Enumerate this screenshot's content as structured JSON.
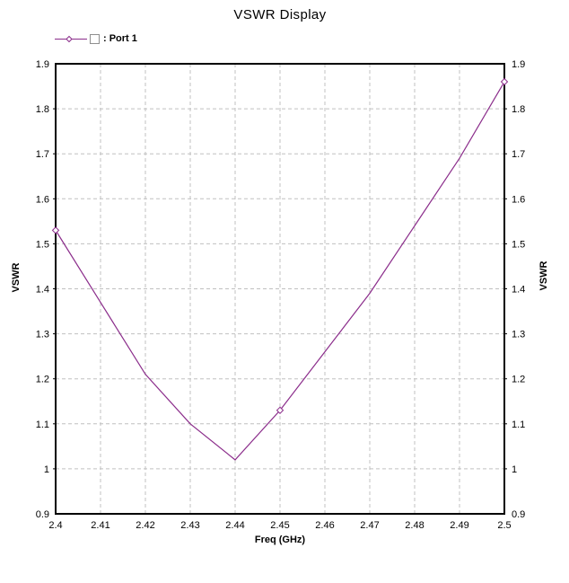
{
  "title": "VSWR Display",
  "legend": {
    "series_name": "Port 1",
    "label": ": Port 1",
    "symbol_box": "□"
  },
  "axes": {
    "x_label": "Freq (GHz)",
    "y_label_left": "VSWR",
    "y_label_right": "VSWR"
  },
  "colors": {
    "series": "#8B2D8B",
    "grid": "#C0C0C0",
    "axis": "#000000",
    "text": "#000000",
    "background": "#FFFFFF"
  },
  "chart_data": {
    "type": "line",
    "title": "VSWR Display",
    "xlabel": "Freq (GHz)",
    "ylabel": "VSWR",
    "xlim": [
      2.4,
      2.5
    ],
    "ylim": [
      0.9,
      1.9
    ],
    "x_ticks": [
      2.4,
      2.41,
      2.42,
      2.43,
      2.44,
      2.45,
      2.46,
      2.47,
      2.48,
      2.49,
      2.5
    ],
    "x_tick_labels": [
      "2.4",
      "2.41",
      "2.42",
      "2.43",
      "2.44",
      "2.45",
      "2.46",
      "2.47",
      "2.48",
      "2.49",
      "2.5"
    ],
    "y_ticks": [
      0.9,
      1.0,
      1.1,
      1.2,
      1.3,
      1.4,
      1.5,
      1.6,
      1.7,
      1.8,
      1.9
    ],
    "y_tick_labels": [
      "0.9",
      "1",
      "1.1",
      "1.2",
      "1.3",
      "1.4",
      "1.5",
      "1.6",
      "1.7",
      "1.8",
      "1.9"
    ],
    "grid": true,
    "grid_style": "dashed",
    "legend_position": "top-left",
    "series": [
      {
        "name": "Port 1",
        "color": "#8B2D8B",
        "marker": "diamond",
        "marker_indices": [
          0,
          5,
          10
        ],
        "x": [
          2.4,
          2.41,
          2.42,
          2.43,
          2.44,
          2.45,
          2.46,
          2.47,
          2.48,
          2.49,
          2.5
        ],
        "y": [
          1.53,
          1.37,
          1.21,
          1.1,
          1.02,
          1.13,
          1.26,
          1.39,
          1.54,
          1.69,
          1.86
        ]
      }
    ]
  }
}
